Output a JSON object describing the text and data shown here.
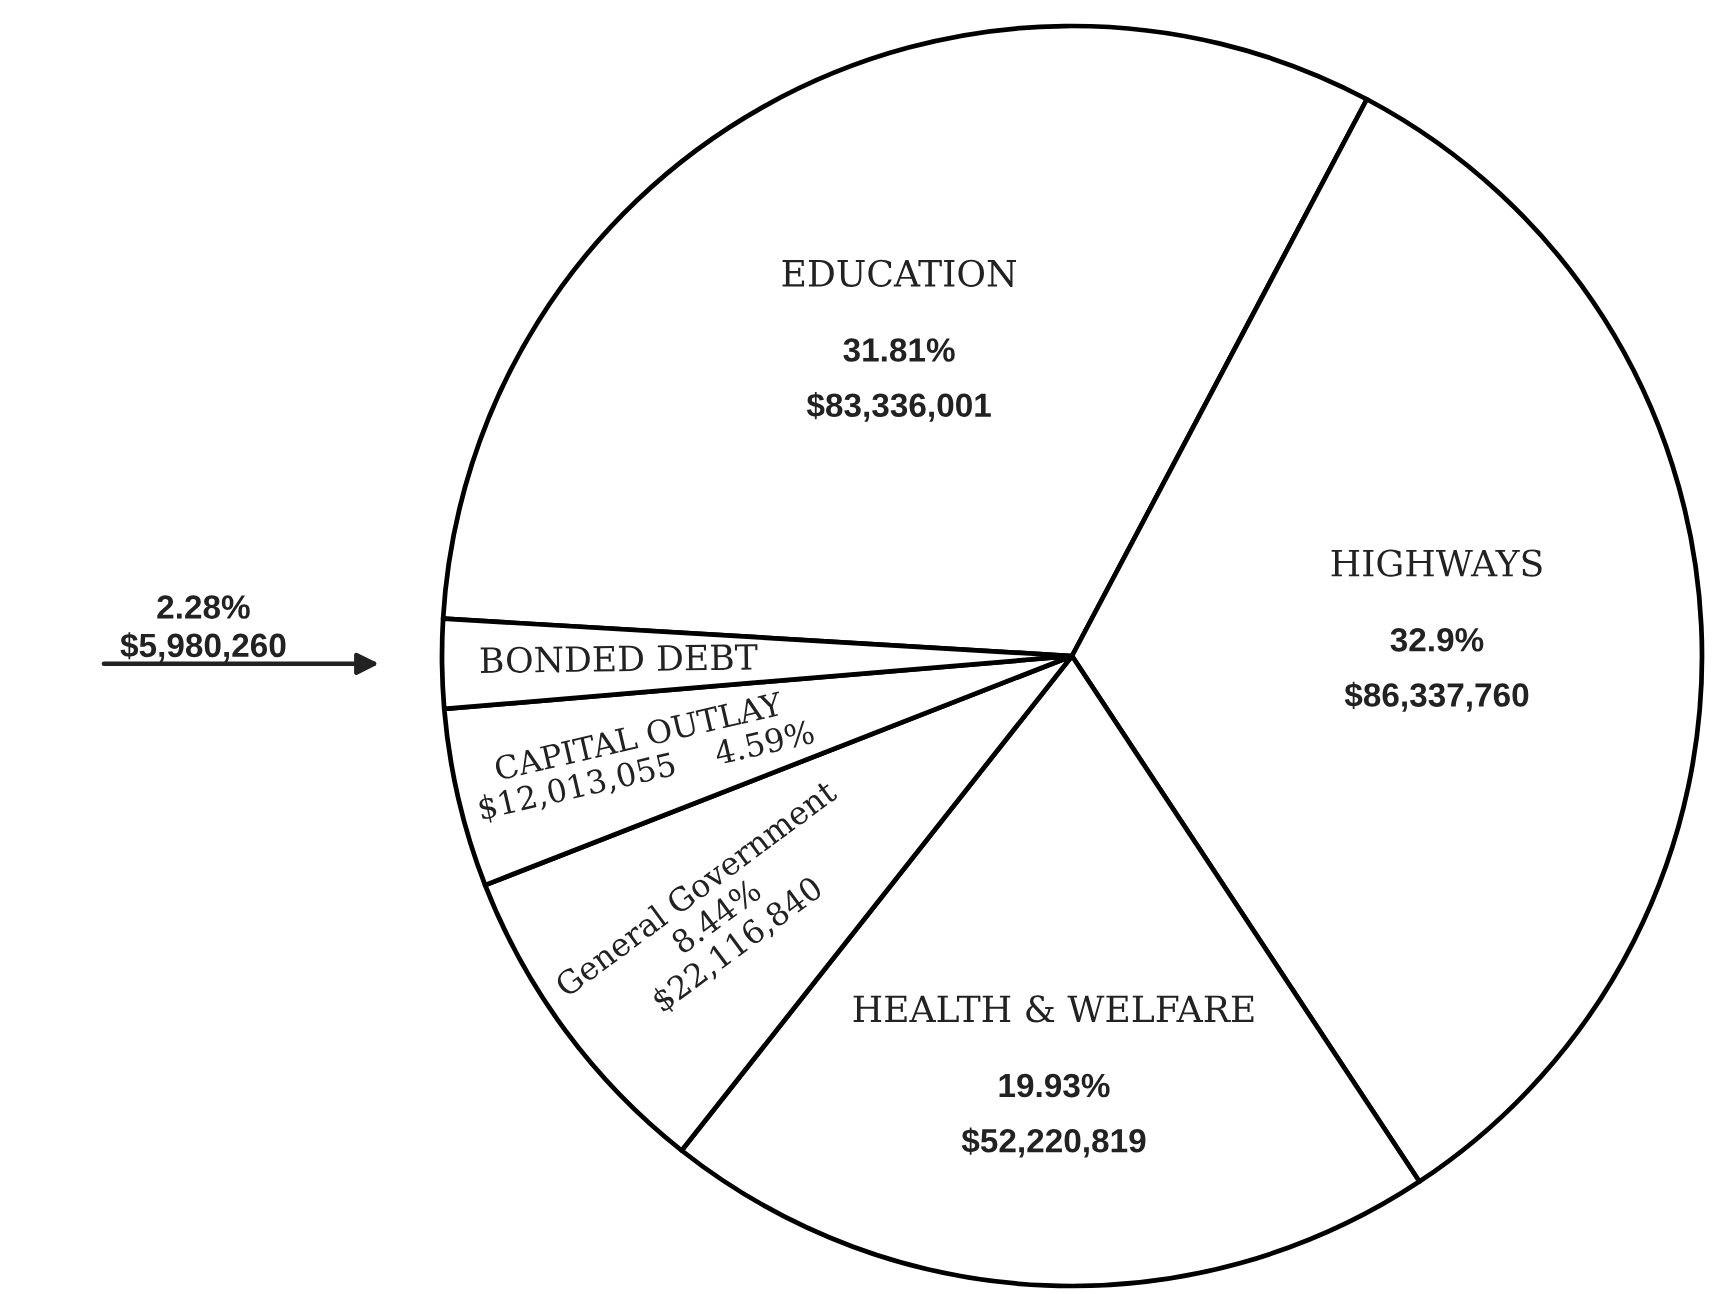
{
  "chart_data": {
    "type": "pie",
    "categories": [
      "EDUCATION",
      "HIGHWAYS",
      "HEALTH & WELFARE",
      "General Government",
      "CAPITAL OUTLAY",
      "BONDED DEBT"
    ],
    "values": [
      83336001,
      86337760,
      52220819,
      22116840,
      12013055,
      5980260
    ],
    "colors": [
      "#ffffff",
      "#ffffff",
      "#ffffff",
      "#ffffff",
      "#ffffff",
      "#ffffff"
    ],
    "value_labels": [
      "31.81%\n$83,336,001",
      "32.9%\n$86,337,760",
      "19.93%\n$52,220,819",
      "8.44%\n$22,116,840",
      "$12,013,055    4.59%",
      "2.28%\n$5,980,260"
    ]
  }
}
